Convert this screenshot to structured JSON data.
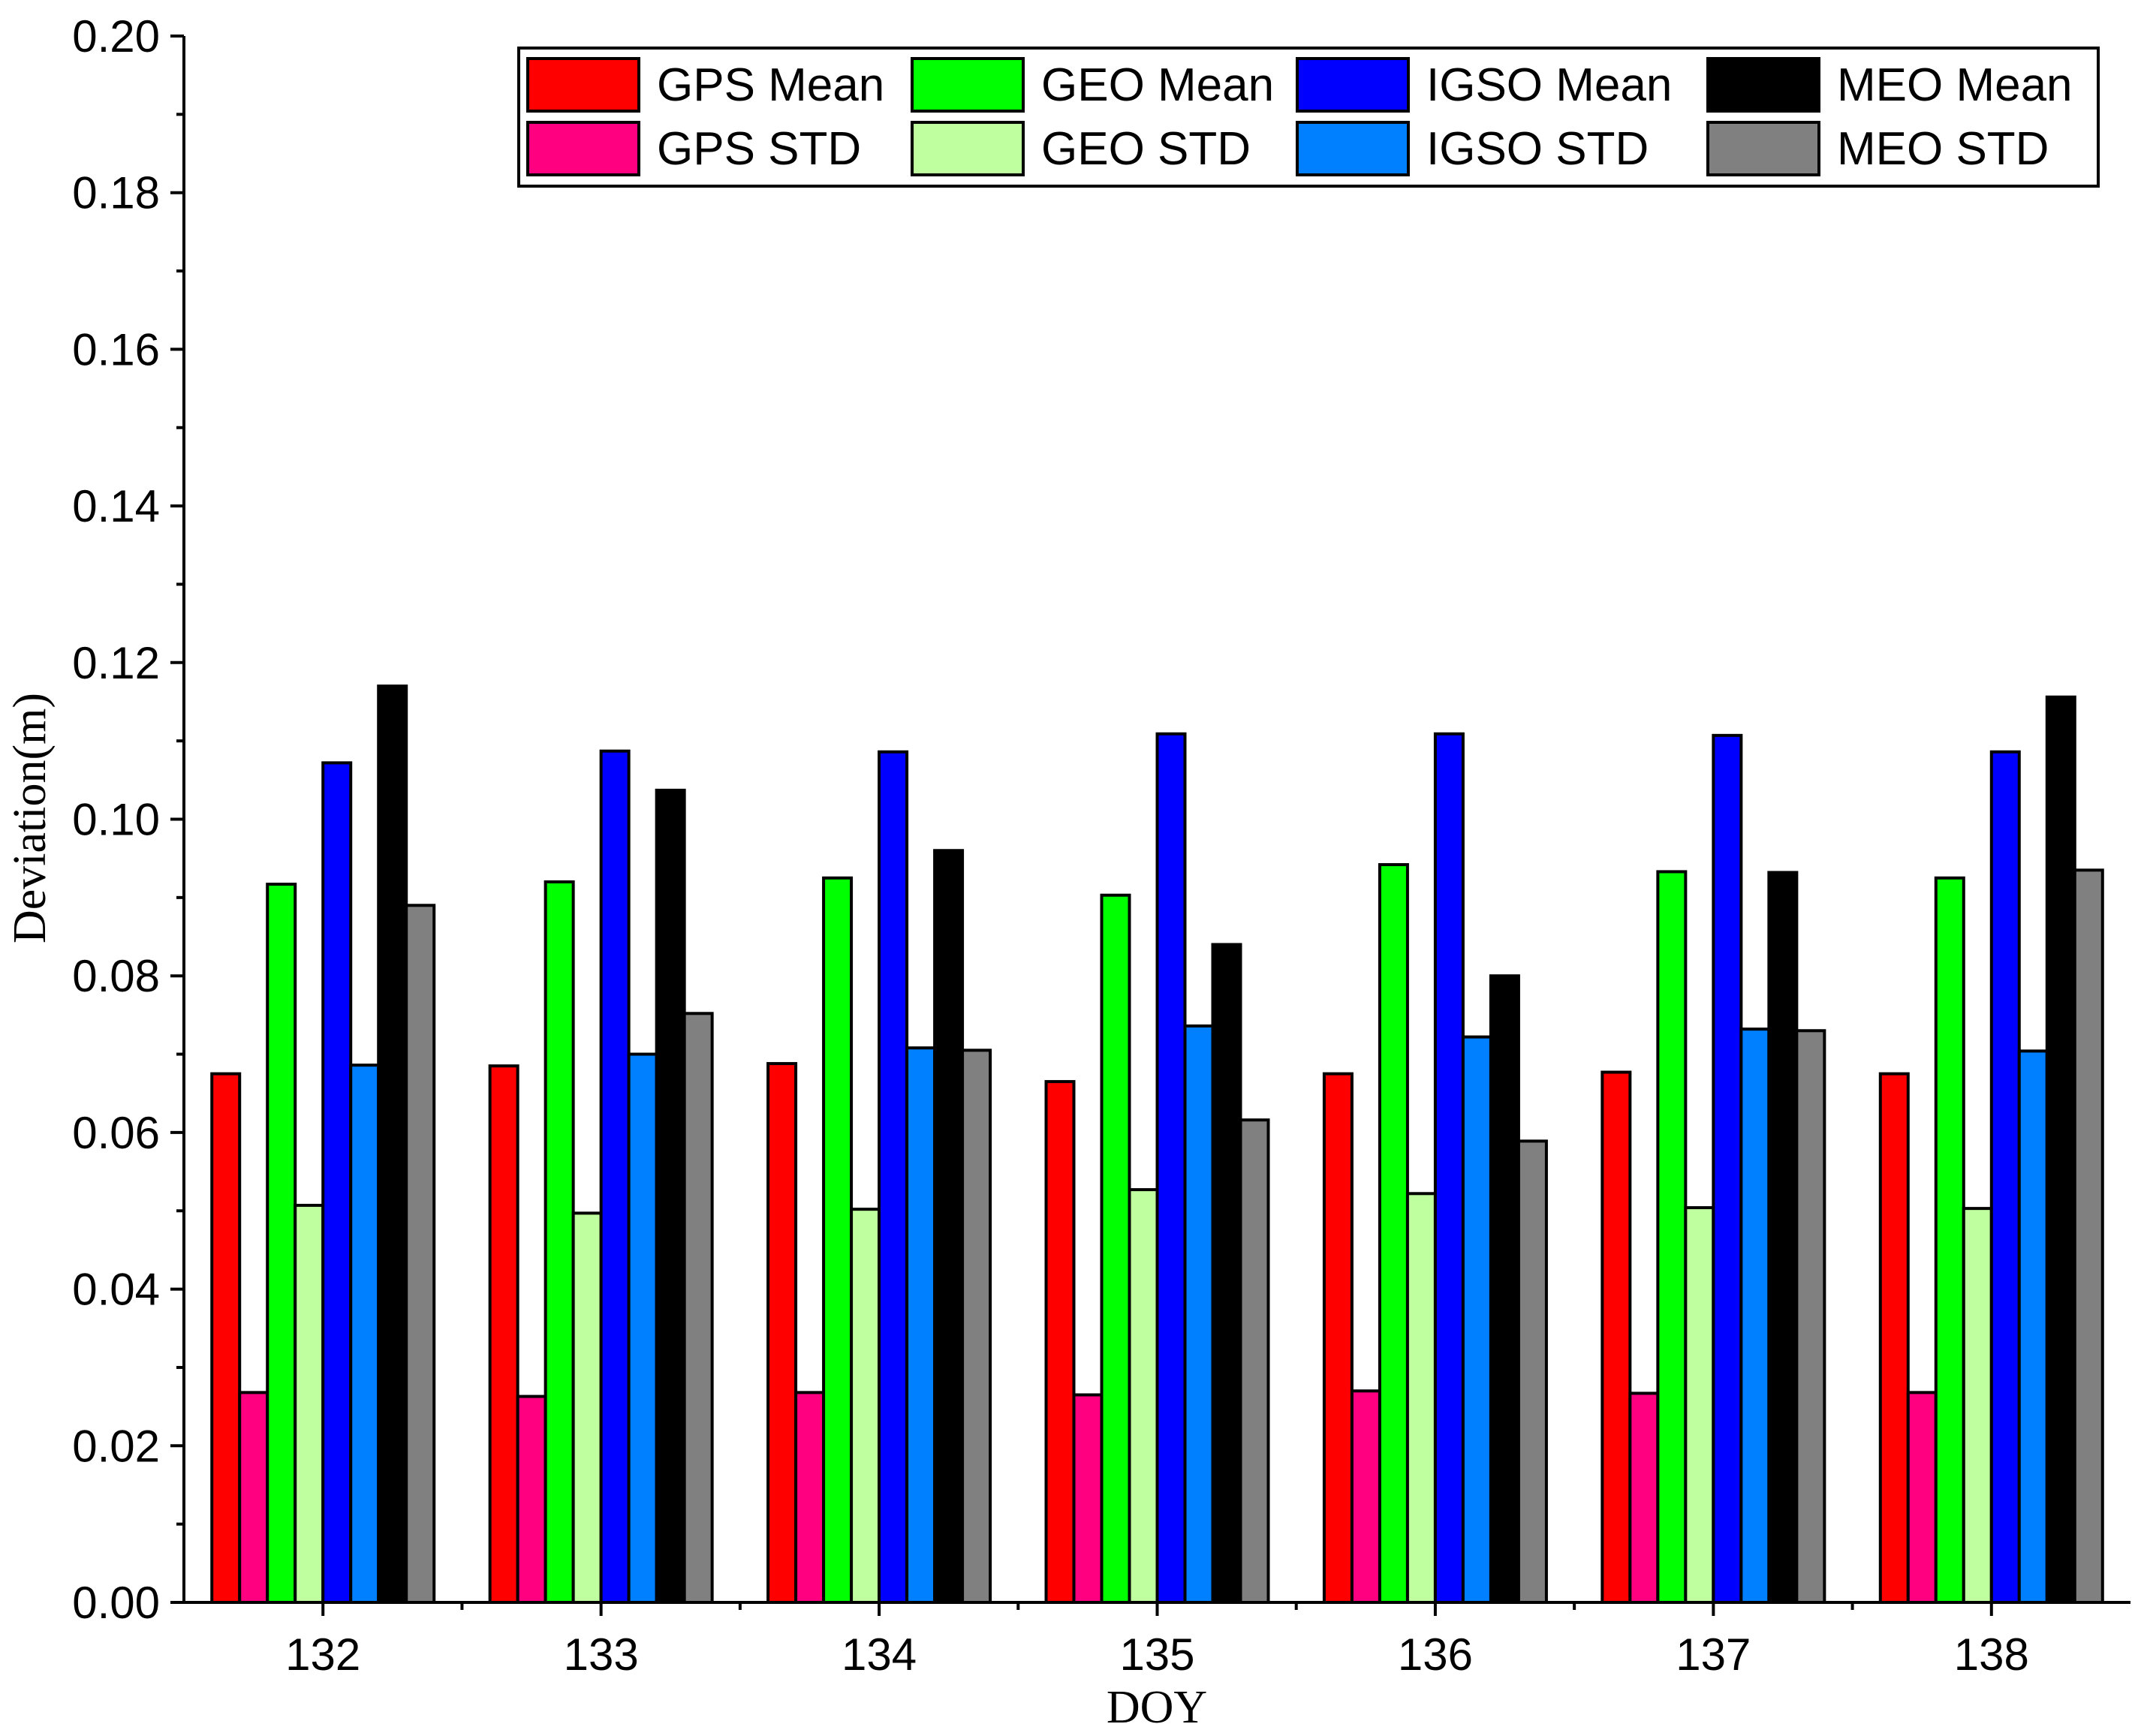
{
  "chart_data": {
    "type": "bar",
    "title": "",
    "xlabel": "DOY",
    "ylabel": "Deviation(m)",
    "ylim": [
      0,
      0.2
    ],
    "yticks": [
      "0.00",
      "0.02",
      "0.04",
      "0.06",
      "0.08",
      "0.10",
      "0.12",
      "0.14",
      "0.16",
      "0.18",
      "0.20"
    ],
    "ytick_values": [
      0,
      0.02,
      0.04,
      0.06,
      0.08,
      0.1,
      0.12,
      0.14,
      0.16,
      0.18,
      0.2
    ],
    "categories": [
      "132",
      "133",
      "134",
      "135",
      "136",
      "137",
      "138"
    ],
    "legend_position": "top-right",
    "series": [
      {
        "name": "GPS Mean",
        "color": "#ff0000",
        "values": [
          0.0675,
          0.0685,
          0.0688,
          0.0665,
          0.0675,
          0.0677,
          0.0675
        ]
      },
      {
        "name": "GPS STD",
        "color": "#ff0080",
        "values": [
          0.0268,
          0.0263,
          0.0268,
          0.0265,
          0.027,
          0.0267,
          0.0268
        ]
      },
      {
        "name": "GEO Mean",
        "color": "#00ff00",
        "values": [
          0.0917,
          0.092,
          0.0925,
          0.0903,
          0.0942,
          0.0933,
          0.0925
        ]
      },
      {
        "name": "GEO STD",
        "color": "#c0ffa0",
        "values": [
          0.0507,
          0.0497,
          0.0502,
          0.0527,
          0.0522,
          0.0504,
          0.0503
        ]
      },
      {
        "name": "IGSO Mean",
        "color": "#0000ff",
        "values": [
          0.1072,
          0.1087,
          0.1086,
          0.1109,
          0.1109,
          0.1107,
          0.1086
        ]
      },
      {
        "name": "IGSO STD",
        "color": "#0080ff",
        "values": [
          0.0686,
          0.07,
          0.0708,
          0.0736,
          0.0722,
          0.0732,
          0.0704
        ]
      },
      {
        "name": "MEO Mean",
        "color": "#000000",
        "values": [
          0.117,
          0.1037,
          0.096,
          0.084,
          0.08,
          0.0932,
          0.1156
        ]
      },
      {
        "name": "MEO STD",
        "color": "#808080",
        "values": [
          0.089,
          0.0752,
          0.0705,
          0.0616,
          0.0589,
          0.073,
          0.0935
        ]
      }
    ],
    "legend_order": [
      "GPS Mean",
      "GEO Mean",
      "IGSO Mean",
      "MEO Mean",
      "GPS STD",
      "GEO STD",
      "IGSO STD",
      "MEO STD"
    ],
    "grid": false
  }
}
